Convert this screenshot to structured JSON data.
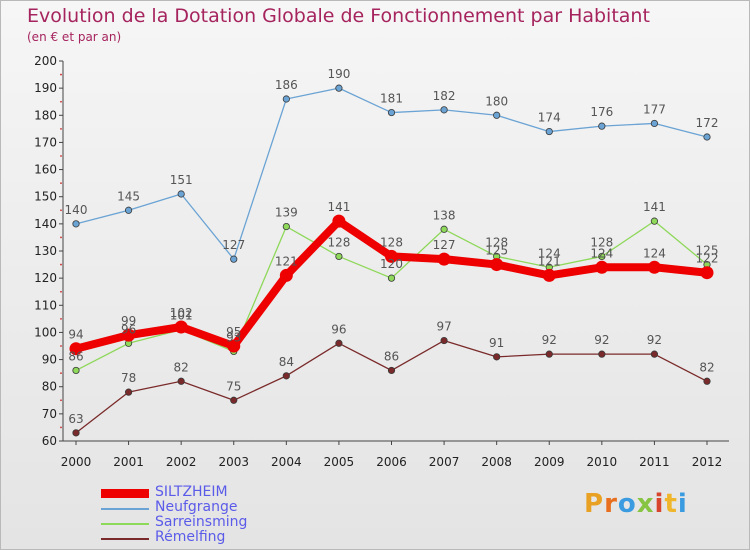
{
  "header": {
    "title": "Evolution de la Dotation Globale de Fonctionnement par Habitant",
    "subtitle": "(en € et par an)"
  },
  "logo": {
    "text": "Proxiti",
    "colors": [
      "#e8a123",
      "#e76f1e",
      "#3a9be0",
      "#86c441",
      "#d8452e",
      "#f0b62b",
      "#3a9be0"
    ]
  },
  "chart_data": {
    "type": "line",
    "title": "Evolution de la Dotation Globale de Fonctionnement par Habitant",
    "subtitle": "(en € et par an)",
    "xlabel": "",
    "ylabel": "",
    "ylim": [
      60,
      200
    ],
    "yticks": [
      60,
      70,
      80,
      90,
      100,
      110,
      120,
      130,
      140,
      150,
      160,
      170,
      180,
      190,
      200
    ],
    "x": [
      "2000",
      "2001",
      "2002",
      "2003",
      "2004",
      "2005",
      "2006",
      "2007",
      "2008",
      "2009",
      "2010",
      "2011",
      "2012"
    ],
    "grid": false,
    "legend_position": "bottom-left",
    "series": [
      {
        "name": "SILTZHEIM",
        "color": "#ee0000",
        "emphasis": true,
        "values": [
          94,
          99,
          102,
          95,
          121,
          141,
          128,
          127,
          125,
          121,
          124,
          124,
          122
        ]
      },
      {
        "name": "Neufgrange",
        "color": "#6aa3d4",
        "emphasis": false,
        "values": [
          140,
          145,
          151,
          127,
          186,
          190,
          181,
          182,
          180,
          174,
          176,
          177,
          172
        ]
      },
      {
        "name": "Sarreinsming",
        "color": "#8ed85a",
        "emphasis": false,
        "values": [
          86,
          96,
          101,
          93,
          139,
          128,
          120,
          138,
          128,
          124,
          128,
          141,
          125
        ]
      },
      {
        "name": "Rémelfing",
        "color": "#7a2a2a",
        "emphasis": false,
        "values": [
          63,
          78,
          82,
          75,
          84,
          96,
          86,
          97,
          91,
          92,
          92,
          92,
          82
        ]
      }
    ]
  }
}
